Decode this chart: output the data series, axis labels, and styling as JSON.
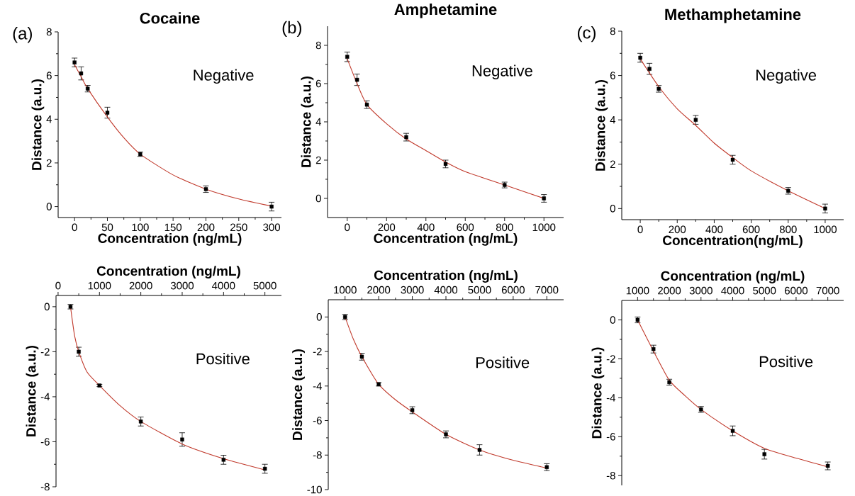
{
  "chart_data": [
    {
      "type": "scatter",
      "title": "Cocaine",
      "xlabel": "Concentration (ng/mL)",
      "ylabel": "Distance (a.u.)",
      "annotations": [
        "(a)",
        "Negative"
      ],
      "xlim": [
        -25,
        315
      ],
      "xticks": [
        0,
        50,
        100,
        150,
        200,
        250,
        300
      ],
      "ylim": [
        -0.5,
        8
      ],
      "yticks": [
        0,
        2,
        4,
        6,
        8
      ],
      "series": [
        {
          "type": "scatter",
          "marker": "square",
          "color": "#000000",
          "x": [
            0,
            10,
            20,
            50,
            100,
            200,
            300
          ],
          "values": [
            6.6,
            6.1,
            5.4,
            4.3,
            2.4,
            0.8,
            0
          ],
          "errors": [
            0.2,
            0.3,
            0.15,
            0.25,
            0.1,
            0.15,
            0.2
          ]
        },
        {
          "type": "line",
          "color": "#c0392b",
          "x": [
            0,
            10,
            20,
            50,
            75,
            100,
            150,
            200,
            250,
            300
          ],
          "values": [
            6.5,
            5.95,
            5.4,
            4.1,
            3.15,
            2.4,
            1.45,
            0.8,
            0.35,
            0.02
          ]
        }
      ]
    },
    {
      "type": "scatter",
      "title": "Amphetamine",
      "xlabel": "Concentration (ng/mL)",
      "ylabel": "Distance (a.u.)",
      "annotations": [
        "(b)",
        "Negative"
      ],
      "xlim": [
        -100,
        1100
      ],
      "xticks": [
        0,
        200,
        400,
        600,
        800,
        1000
      ],
      "ylim": [
        -1,
        9
      ],
      "yticks": [
        0,
        2,
        4,
        6,
        8
      ],
      "series": [
        {
          "type": "scatter",
          "marker": "square",
          "color": "#000000",
          "x": [
            0,
            50,
            100,
            300,
            500,
            800,
            1000
          ],
          "values": [
            7.4,
            6.2,
            4.9,
            3.2,
            1.8,
            0.7,
            0
          ],
          "errors": [
            0.25,
            0.3,
            0.2,
            0.2,
            0.2,
            0.15,
            0.2
          ]
        },
        {
          "type": "line",
          "color": "#c0392b",
          "x": [
            0,
            50,
            100,
            200,
            300,
            400,
            500,
            600,
            800,
            1000
          ],
          "values": [
            7.3,
            6.0,
            4.9,
            3.9,
            3.1,
            2.5,
            1.9,
            1.4,
            0.7,
            0.0
          ]
        }
      ]
    },
    {
      "type": "scatter",
      "title": "Methamphetamine",
      "xlabel": "Concentration(ng/mL)",
      "ylabel": "Distance (a.u.)",
      "annotations": [
        "(c)",
        "Negative"
      ],
      "xlim": [
        -100,
        1100
      ],
      "xticks": [
        0,
        200,
        400,
        600,
        800,
        1000
      ],
      "ylim": [
        -0.5,
        8
      ],
      "yticks": [
        0,
        2,
        4,
        6,
        8
      ],
      "series": [
        {
          "type": "scatter",
          "marker": "square",
          "color": "#000000",
          "x": [
            0,
            50,
            100,
            300,
            500,
            800,
            1000
          ],
          "values": [
            6.8,
            6.3,
            5.4,
            4.0,
            2.2,
            0.8,
            0
          ],
          "errors": [
            0.2,
            0.25,
            0.15,
            0.2,
            0.2,
            0.15,
            0.2
          ]
        },
        {
          "type": "line",
          "color": "#c0392b",
          "x": [
            0,
            100,
            200,
            300,
            400,
            500,
            600,
            800,
            1000
          ],
          "values": [
            6.75,
            5.5,
            4.5,
            3.75,
            2.95,
            2.3,
            1.7,
            0.8,
            0
          ]
        }
      ]
    },
    {
      "type": "scatter",
      "xlabel": "Concentration (ng/mL)",
      "ylabel": "Distance (a.u.)",
      "annotations": [
        "Positive"
      ],
      "xlim": [
        -50,
        5400
      ],
      "xticks": [
        0,
        1000,
        2000,
        3000,
        4000,
        5000
      ],
      "ylim": [
        -8,
        0.5
      ],
      "yticks": [
        0,
        -2,
        -4,
        -6,
        -8
      ],
      "series": [
        {
          "type": "scatter",
          "marker": "square",
          "color": "#000000",
          "x": [
            300,
            500,
            1000,
            2000,
            3000,
            4000,
            5000
          ],
          "values": [
            0,
            -2,
            -3.5,
            -5.1,
            -5.9,
            -6.8,
            -7.2
          ],
          "errors": [
            0.1,
            0.2,
            0.05,
            0.2,
            0.3,
            0.2,
            0.2
          ]
        },
        {
          "type": "line",
          "color": "#c0392b",
          "x": [
            300,
            400,
            500,
            700,
            1000,
            1500,
            2000,
            3000,
            4000,
            5000
          ],
          "values": [
            0,
            -1.3,
            -2.0,
            -2.9,
            -3.5,
            -4.4,
            -5.1,
            -6.1,
            -6.75,
            -7.25
          ]
        }
      ]
    },
    {
      "type": "scatter",
      "xlabel": "Concentration (ng/mL)",
      "ylabel": "Distance (a.u.)",
      "annotations": [
        "Positive"
      ],
      "xlim": [
        500,
        7500
      ],
      "xticks": [
        1000,
        2000,
        3000,
        4000,
        5000,
        6000,
        7000
      ],
      "ylim": [
        -10,
        1
      ],
      "yticks": [
        0,
        -2,
        -4,
        -6,
        -8,
        -10
      ],
      "series": [
        {
          "type": "scatter",
          "marker": "square",
          "color": "#000000",
          "x": [
            1000,
            1500,
            2000,
            3000,
            4000,
            5000,
            7000
          ],
          "values": [
            0,
            -2.3,
            -3.9,
            -5.4,
            -6.8,
            -7.7,
            -8.7
          ],
          "errors": [
            0.15,
            0.2,
            0.1,
            0.2,
            0.2,
            0.3,
            0.2
          ]
        },
        {
          "type": "line",
          "color": "#c0392b",
          "x": [
            1000,
            1250,
            1500,
            2000,
            2500,
            3000,
            4000,
            5000,
            6000,
            7000
          ],
          "values": [
            0,
            -1.3,
            -2.3,
            -3.9,
            -4.8,
            -5.5,
            -6.8,
            -7.7,
            -8.3,
            -8.75
          ]
        }
      ]
    },
    {
      "type": "scatter",
      "xlabel": "Concentration (ng/mL)",
      "ylabel": "Distance (a.u.)",
      "annotations": [
        "Positive"
      ],
      "xlim": [
        500,
        7500
      ],
      "xticks": [
        1000,
        2000,
        3000,
        4000,
        5000,
        6000,
        7000
      ],
      "ylim": [
        -8.5,
        1
      ],
      "yticks": [
        0,
        -2,
        -4,
        -6,
        -8
      ],
      "series": [
        {
          "type": "scatter",
          "marker": "square",
          "color": "#000000",
          "x": [
            1000,
            1500,
            2000,
            3000,
            4000,
            5000,
            7000
          ],
          "values": [
            0,
            -1.5,
            -3.2,
            -4.6,
            -5.7,
            -6.9,
            -7.5
          ],
          "errors": [
            0.15,
            0.2,
            0.15,
            0.15,
            0.25,
            0.25,
            0.2
          ]
        },
        {
          "type": "line",
          "color": "#c0392b",
          "x": [
            1000,
            1500,
            2000,
            2500,
            3000,
            4000,
            5000,
            6000,
            7000
          ],
          "values": [
            0,
            -1.6,
            -3.1,
            -3.9,
            -4.6,
            -5.7,
            -6.6,
            -7.1,
            -7.55
          ]
        }
      ]
    }
  ]
}
